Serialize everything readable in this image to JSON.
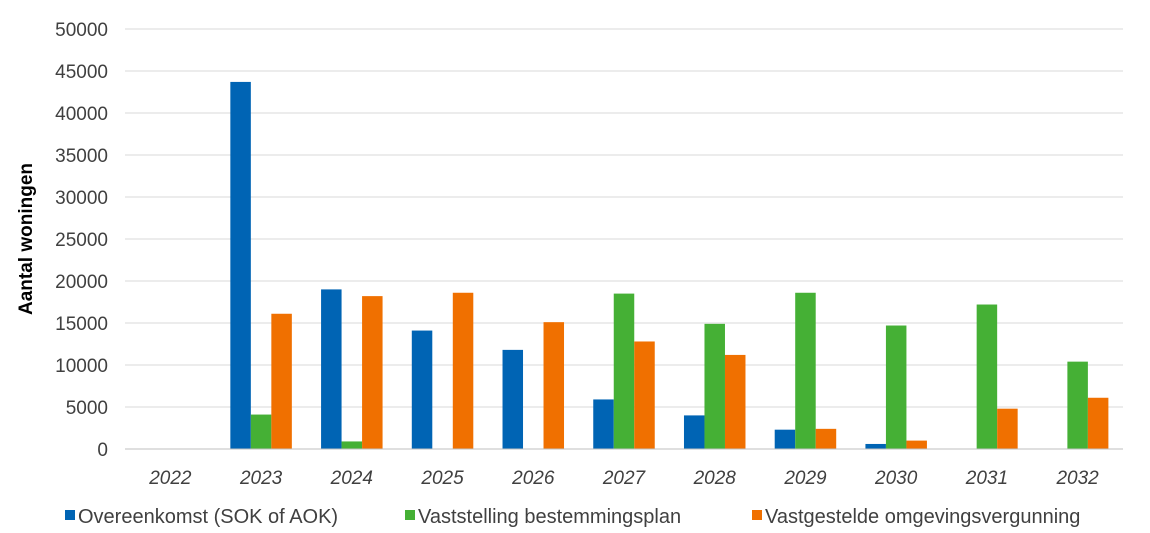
{
  "chart_data": {
    "type": "bar",
    "title": "",
    "xlabel": "",
    "ylabel": "Aantal woningen",
    "ylim": [
      0,
      50000
    ],
    "yticks": [
      0,
      5000,
      10000,
      15000,
      20000,
      25000,
      30000,
      35000,
      40000,
      45000,
      50000
    ],
    "grid": true,
    "legend_position": "bottom",
    "categories": [
      "2022",
      "2023",
      "2024",
      "2025",
      "2026",
      "2027",
      "2028",
      "2029",
      "2030",
      "2031",
      "2032"
    ],
    "series": [
      {
        "name": "Overeenkomst (SOK of AOK)",
        "color": "#0064b4",
        "values": [
          0,
          43700,
          19000,
          14100,
          11800,
          5900,
          4000,
          2300,
          600,
          0,
          0
        ]
      },
      {
        "name": "Vaststelling bestemmingsplan",
        "color": "#45b035",
        "values": [
          0,
          4100,
          900,
          0,
          0,
          18500,
          14900,
          18600,
          14700,
          17200,
          10400
        ]
      },
      {
        "name": "Vastgestelde omgevingsvergunning",
        "color": "#f07000",
        "values": [
          0,
          16100,
          18200,
          18600,
          15100,
          12800,
          11200,
          2400,
          1000,
          4800,
          6100
        ]
      }
    ]
  }
}
